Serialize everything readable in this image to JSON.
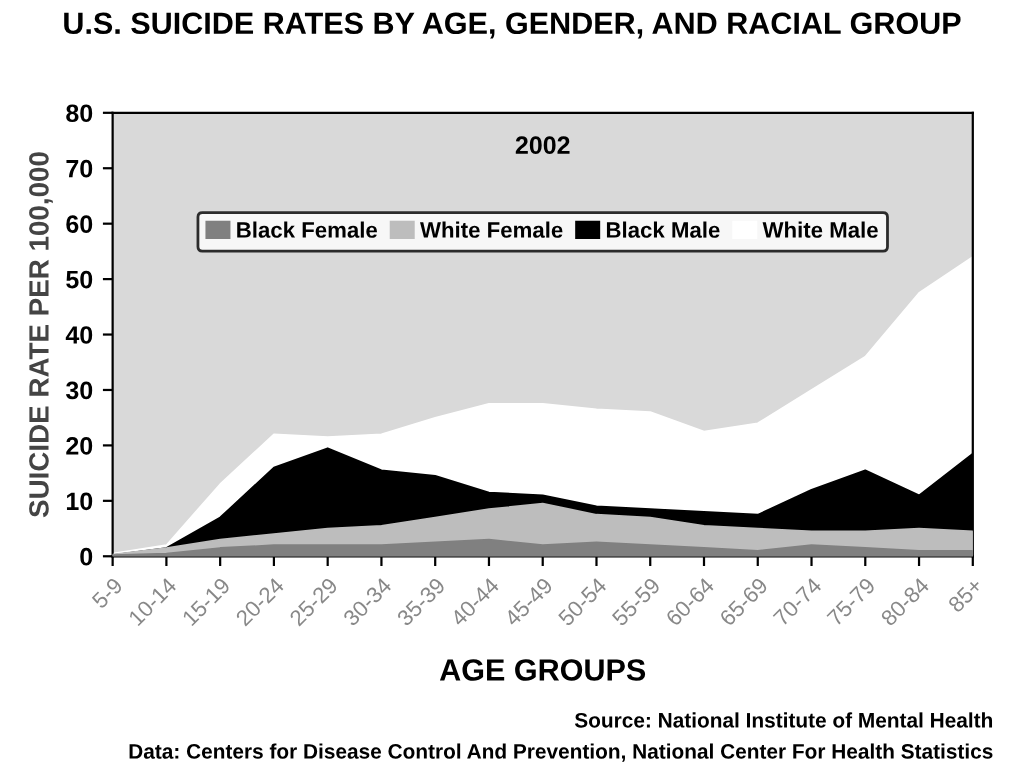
{
  "chart_data": {
    "type": "area",
    "title": "U.S. SUICIDE RATES BY AGE, GENDER, AND RACIAL GROUP",
    "subtitle": "2002",
    "xlabel": "AGE GROUPS",
    "ylabel": "SUICIDE RATE PER 100,000",
    "categories": [
      "5-9",
      "10-14",
      "15-19",
      "20-24",
      "25-29",
      "30-34",
      "35-39",
      "40-44",
      "45-49",
      "50-54",
      "55-59",
      "60-64",
      "65-69",
      "70-74",
      "75-79",
      "80-84",
      "85+"
    ],
    "series": [
      {
        "name": "White Male",
        "color": "#ffffff",
        "values": [
          0.5,
          2,
          13,
          22,
          21.5,
          22,
          25,
          27.5,
          27.5,
          26.5,
          26,
          22.5,
          24,
          30,
          36,
          47.5,
          54
        ]
      },
      {
        "name": "Black Male",
        "color": "#000000",
        "values": [
          0.2,
          1.5,
          7,
          16,
          19.5,
          15.5,
          14.5,
          11.5,
          11,
          9,
          8.5,
          8,
          7.5,
          12,
          15.5,
          11,
          18.5
        ]
      },
      {
        "name": "White Female",
        "color": "#bdbdbd",
        "values": [
          0.3,
          1.5,
          3,
          4,
          5,
          5.5,
          7,
          8.5,
          9.5,
          7.5,
          7,
          5.5,
          5,
          4.5,
          4.5,
          5,
          4.5
        ]
      },
      {
        "name": "Black Female",
        "color": "#808080",
        "values": [
          0.2,
          0.5,
          1.5,
          2,
          2,
          2,
          2.5,
          3,
          2,
          2.5,
          2,
          1.5,
          1,
          2,
          1.5,
          1,
          1
        ]
      }
    ],
    "ylim": [
      0,
      80
    ],
    "yticks": [
      0,
      10,
      20,
      30,
      40,
      50,
      60,
      70,
      80
    ],
    "grid": false,
    "legend": "top",
    "annotations": [
      "Source: National Institute of Mental Health",
      "Data: Centers for Disease Control And Prevention, National Center For Health Statistics"
    ]
  }
}
